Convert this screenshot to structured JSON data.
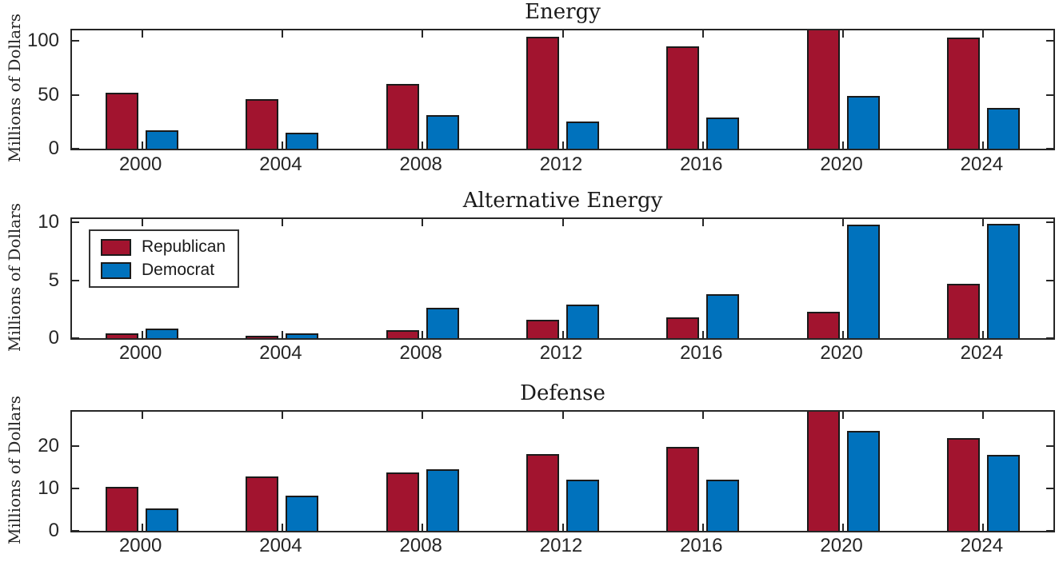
{
  "figure": {
    "background": "#ffffff",
    "colors": {
      "axis": "#262626",
      "bar_edge": "#1a1a1a",
      "text": "#262626",
      "republican": "#A2142F",
      "democrat": "#0072BD"
    },
    "legend": {
      "position": "upper-left of Alternative Energy subplot",
      "items": [
        {
          "label": "Republican",
          "color": "#A2142F"
        },
        {
          "label": "Democrat",
          "color": "#0072BD"
        }
      ]
    }
  },
  "chart_data": [
    {
      "type": "bar",
      "title": "Energy",
      "ylabel": "Millions of Dollars",
      "xlabel": "",
      "categories": [
        "2000",
        "2004",
        "2008",
        "2012",
        "2016",
        "2020",
        "2024"
      ],
      "series": [
        {
          "name": "Republican",
          "color": "#A2142F",
          "values": [
            52,
            46,
            60,
            104,
            95,
            112,
            103
          ]
        },
        {
          "name": "Democrat",
          "color": "#0072BD",
          "values": [
            17,
            15,
            31,
            25,
            29,
            49,
            38
          ]
        }
      ],
      "yticks": [
        0,
        50,
        100
      ],
      "ylim": [
        0,
        110
      ],
      "grid": false,
      "legend": "none",
      "note": "2020 Republican bar is clipped at the top axis limit"
    },
    {
      "type": "bar",
      "title": "Alternative Energy",
      "ylabel": "Millions of Dollars",
      "xlabel": "",
      "categories": [
        "2000",
        "2004",
        "2008",
        "2012",
        "2016",
        "2020",
        "2024"
      ],
      "series": [
        {
          "name": "Republican",
          "color": "#A2142F",
          "values": [
            0.4,
            0.2,
            0.7,
            1.6,
            1.8,
            2.3,
            4.7
          ]
        },
        {
          "name": "Democrat",
          "color": "#0072BD",
          "values": [
            0.8,
            0.4,
            2.6,
            2.9,
            3.8,
            9.8,
            9.9
          ]
        }
      ],
      "yticks": [
        0,
        5,
        10
      ],
      "ylim": [
        0,
        10.3
      ],
      "grid": false,
      "legend": "upper left"
    },
    {
      "type": "bar",
      "title": "Defense",
      "ylabel": "Millions of Dollars",
      "xlabel": "",
      "categories": [
        "2000",
        "2004",
        "2008",
        "2012",
        "2016",
        "2020",
        "2024"
      ],
      "series": [
        {
          "name": "Republican",
          "color": "#A2142F",
          "values": [
            10.4,
            12.7,
            13.8,
            18.1,
            19.8,
            29,
            21.8
          ]
        },
        {
          "name": "Democrat",
          "color": "#0072BD",
          "values": [
            5.3,
            8.3,
            14.4,
            12.0,
            12.0,
            23.5,
            17.8
          ]
        }
      ],
      "yticks": [
        0,
        10,
        20
      ],
      "ylim": [
        0,
        28
      ],
      "grid": false,
      "legend": "none",
      "note": "2020 Republican bar is clipped at the top axis limit"
    }
  ]
}
